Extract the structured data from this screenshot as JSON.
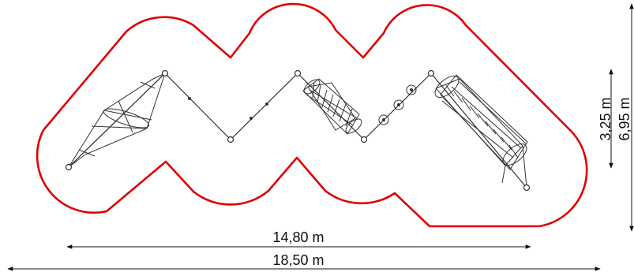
{
  "colors": {
    "safety_zone": "#e00000",
    "equipment": "#333333",
    "dimension": "#111111"
  },
  "dimensions": {
    "inner_width": "14,80 m",
    "overall_width": "18,50 m",
    "inner_depth": "3,25 m",
    "overall_depth": "6,95 m"
  }
}
